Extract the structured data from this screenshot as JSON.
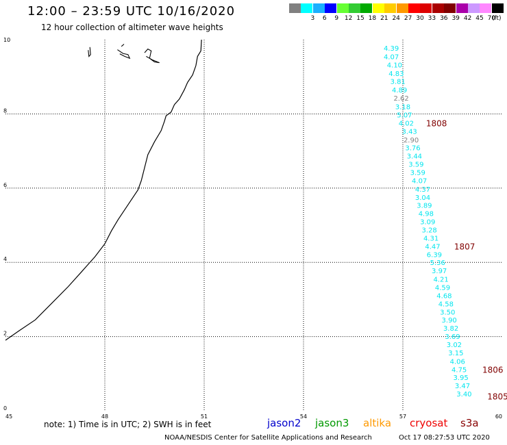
{
  "header": {
    "title": "12:00 – 23:59 UTC 10/16/2020",
    "subtitle": "12 hour collection of altimeter wave heights"
  },
  "legend": {
    "units": "(ft)",
    "items": [
      {
        "color": "#808080",
        "label": ""
      },
      {
        "color": "#00ffff",
        "label": "3"
      },
      {
        "color": "#1ab0ff",
        "label": "6"
      },
      {
        "color": "#0000ff",
        "label": "9"
      },
      {
        "color": "#66ff33",
        "label": "12"
      },
      {
        "color": "#33cc33",
        "label": "15"
      },
      {
        "color": "#00aa00",
        "label": "18"
      },
      {
        "color": "#ffff00",
        "label": "21"
      },
      {
        "color": "#ffcc00",
        "label": "24"
      },
      {
        "color": "#ff9900",
        "label": "27"
      },
      {
        "color": "#ff0000",
        "label": "30"
      },
      {
        "color": "#dd0000",
        "label": "33"
      },
      {
        "color": "#aa0000",
        "label": "36"
      },
      {
        "color": "#800000",
        "label": "39"
      },
      {
        "color": "#aa00aa",
        "label": "42"
      },
      {
        "color": "#cc99ff",
        "label": "45"
      },
      {
        "color": "#ff88ff",
        "label": "70"
      },
      {
        "color": "#000000",
        "label": ""
      }
    ]
  },
  "map": {
    "x_ticks": [
      "45",
      "48",
      "51",
      "54",
      "57",
      "60"
    ],
    "y_ticks": [
      "0",
      "2",
      "4",
      "6",
      "8",
      "10"
    ],
    "lon_range": [
      45,
      60
    ],
    "lat_range": [
      0,
      10
    ],
    "wave_color_cyan": "#00e5ee",
    "wave_color_gray": "#808080",
    "wave_observations": [
      {
        "lon": 56.65,
        "lat": 9.78,
        "value": "4.39",
        "color": "cyan"
      },
      {
        "lon": 56.65,
        "lat": 9.55,
        "value": "4.07",
        "color": "cyan"
      },
      {
        "lon": 56.75,
        "lat": 9.33,
        "value": "4.10",
        "color": "cyan"
      },
      {
        "lon": 56.8,
        "lat": 9.1,
        "value": "4.83",
        "color": "cyan"
      },
      {
        "lon": 56.85,
        "lat": 8.88,
        "value": "3.81",
        "color": "cyan"
      },
      {
        "lon": 56.9,
        "lat": 8.65,
        "value": "4.89",
        "color": "cyan"
      },
      {
        "lon": 56.95,
        "lat": 8.43,
        "value": "2.62",
        "color": "gray"
      },
      {
        "lon": 57.0,
        "lat": 8.2,
        "value": "3.18",
        "color": "cyan"
      },
      {
        "lon": 57.05,
        "lat": 7.98,
        "value": "5.07",
        "color": "cyan"
      },
      {
        "lon": 57.1,
        "lat": 7.76,
        "value": "4.02",
        "color": "cyan"
      },
      {
        "lon": 57.2,
        "lat": 7.54,
        "value": "3.43",
        "color": "cyan"
      },
      {
        "lon": 57.25,
        "lat": 7.31,
        "value": "2.90",
        "color": "gray"
      },
      {
        "lon": 57.3,
        "lat": 7.09,
        "value": "3.76",
        "color": "cyan"
      },
      {
        "lon": 57.35,
        "lat": 6.87,
        "value": "3.44",
        "color": "cyan"
      },
      {
        "lon": 57.4,
        "lat": 6.65,
        "value": "3.59",
        "color": "cyan"
      },
      {
        "lon": 57.45,
        "lat": 6.43,
        "value": "3.59",
        "color": "cyan"
      },
      {
        "lon": 57.5,
        "lat": 6.21,
        "value": "4.07",
        "color": "cyan"
      },
      {
        "lon": 57.6,
        "lat": 5.98,
        "value": "4.37",
        "color": "cyan"
      },
      {
        "lon": 57.6,
        "lat": 5.76,
        "value": "3.04",
        "color": "cyan"
      },
      {
        "lon": 57.65,
        "lat": 5.54,
        "value": "3.89",
        "color": "cyan"
      },
      {
        "lon": 57.7,
        "lat": 5.32,
        "value": "4.98",
        "color": "cyan"
      },
      {
        "lon": 57.75,
        "lat": 5.1,
        "value": "3.09",
        "color": "cyan"
      },
      {
        "lon": 57.8,
        "lat": 4.88,
        "value": "3.28",
        "color": "cyan"
      },
      {
        "lon": 57.85,
        "lat": 4.66,
        "value": "4.31",
        "color": "cyan"
      },
      {
        "lon": 57.9,
        "lat": 4.44,
        "value": "4.47",
        "color": "cyan"
      },
      {
        "lon": 57.95,
        "lat": 4.22,
        "value": "6.39",
        "color": "cyan"
      },
      {
        "lon": 58.05,
        "lat": 4.0,
        "value": "5.36",
        "color": "cyan"
      },
      {
        "lon": 58.1,
        "lat": 3.78,
        "value": "3.97",
        "color": "cyan"
      },
      {
        "lon": 58.15,
        "lat": 3.55,
        "value": "4.21",
        "color": "cyan"
      },
      {
        "lon": 58.2,
        "lat": 3.33,
        "value": "4.59",
        "color": "cyan"
      },
      {
        "lon": 58.25,
        "lat": 3.11,
        "value": "4.68",
        "color": "cyan"
      },
      {
        "lon": 58.3,
        "lat": 2.89,
        "value": "4.58",
        "color": "cyan"
      },
      {
        "lon": 58.35,
        "lat": 2.67,
        "value": "3.50",
        "color": "cyan"
      },
      {
        "lon": 58.4,
        "lat": 2.45,
        "value": "3.90",
        "color": "cyan"
      },
      {
        "lon": 58.45,
        "lat": 2.23,
        "value": "3.82",
        "color": "cyan"
      },
      {
        "lon": 58.5,
        "lat": 2.01,
        "value": "3.69",
        "color": "cyan"
      },
      {
        "lon": 58.55,
        "lat": 1.79,
        "value": "3.02",
        "color": "cyan"
      },
      {
        "lon": 58.6,
        "lat": 1.57,
        "value": "3.15",
        "color": "cyan"
      },
      {
        "lon": 58.65,
        "lat": 1.34,
        "value": "4.06",
        "color": "cyan"
      },
      {
        "lon": 58.7,
        "lat": 1.12,
        "value": "4.75",
        "color": "cyan"
      },
      {
        "lon": 58.75,
        "lat": 0.9,
        "value": "3.95",
        "color": "cyan"
      },
      {
        "lon": 58.8,
        "lat": 0.68,
        "value": "3.47",
        "color": "cyan"
      },
      {
        "lon": 58.85,
        "lat": 0.46,
        "value": "3.40",
        "color": "cyan"
      }
    ],
    "pass_times": [
      {
        "lon": 57.7,
        "lat": 7.76,
        "value": "1808"
      },
      {
        "lon": 58.55,
        "lat": 4.44,
        "value": "1807"
      },
      {
        "lon": 59.4,
        "lat": 1.12,
        "value": "1806"
      },
      {
        "lon": 59.55,
        "lat": 0.4,
        "value": "1805"
      }
    ],
    "coastline": [
      [
        45.0,
        1.9
      ],
      [
        45.4,
        2.15
      ],
      [
        45.9,
        2.45
      ],
      [
        46.4,
        2.9
      ],
      [
        46.9,
        3.35
      ],
      [
        47.3,
        3.75
      ],
      [
        47.7,
        4.15
      ],
      [
        48.0,
        4.5
      ],
      [
        48.2,
        4.85
      ],
      [
        48.4,
        5.15
      ],
      [
        48.7,
        5.55
      ],
      [
        49.0,
        5.95
      ],
      [
        49.1,
        6.2
      ],
      [
        49.2,
        6.55
      ],
      [
        49.3,
        6.9
      ],
      [
        49.5,
        7.25
      ],
      [
        49.7,
        7.55
      ],
      [
        49.8,
        7.8
      ],
      [
        49.85,
        7.95
      ],
      [
        50.0,
        8.05
      ],
      [
        50.1,
        8.25
      ],
      [
        50.25,
        8.4
      ],
      [
        50.4,
        8.65
      ],
      [
        50.5,
        8.85
      ],
      [
        50.65,
        9.05
      ],
      [
        50.75,
        9.3
      ],
      [
        50.8,
        9.55
      ],
      [
        50.9,
        9.7
      ],
      [
        50.92,
        10.0
      ]
    ],
    "islands": [
      [
        [
          47.5,
          9.72
        ],
        [
          47.52,
          9.55
        ],
        [
          47.57,
          9.6
        ],
        [
          47.55,
          9.8
        ]
      ],
      [
        [
          48.38,
          9.73
        ],
        [
          48.55,
          9.63
        ],
        [
          48.7,
          9.6
        ],
        [
          48.75,
          9.5
        ],
        [
          48.6,
          9.55
        ],
        [
          48.45,
          9.62
        ]
      ],
      [
        [
          48.5,
          9.82
        ],
        [
          48.58,
          9.88
        ]
      ],
      [
        [
          49.2,
          9.65
        ],
        [
          49.3,
          9.75
        ],
        [
          49.4,
          9.7
        ],
        [
          49.35,
          9.5
        ],
        [
          49.5,
          9.4
        ],
        [
          49.65,
          9.38
        ],
        [
          49.45,
          9.45
        ],
        [
          49.25,
          9.55
        ]
      ]
    ]
  },
  "footer": {
    "note": "note: 1) Time is in UTC; 2) SWH is in feet",
    "satellites": [
      {
        "name": "jason2",
        "color": "#0000cc"
      },
      {
        "name": "jason3",
        "color": "#009900"
      },
      {
        "name": "altika",
        "color": "#ff9900"
      },
      {
        "name": "cryosat",
        "color": "#ee0000"
      },
      {
        "name": "s3a",
        "color": "#880000"
      }
    ],
    "credit": "NOAA/NESDIS Center for Satellite Applications and Research",
    "timestamp": "Oct 17 08:27:53 UTC 2020"
  }
}
